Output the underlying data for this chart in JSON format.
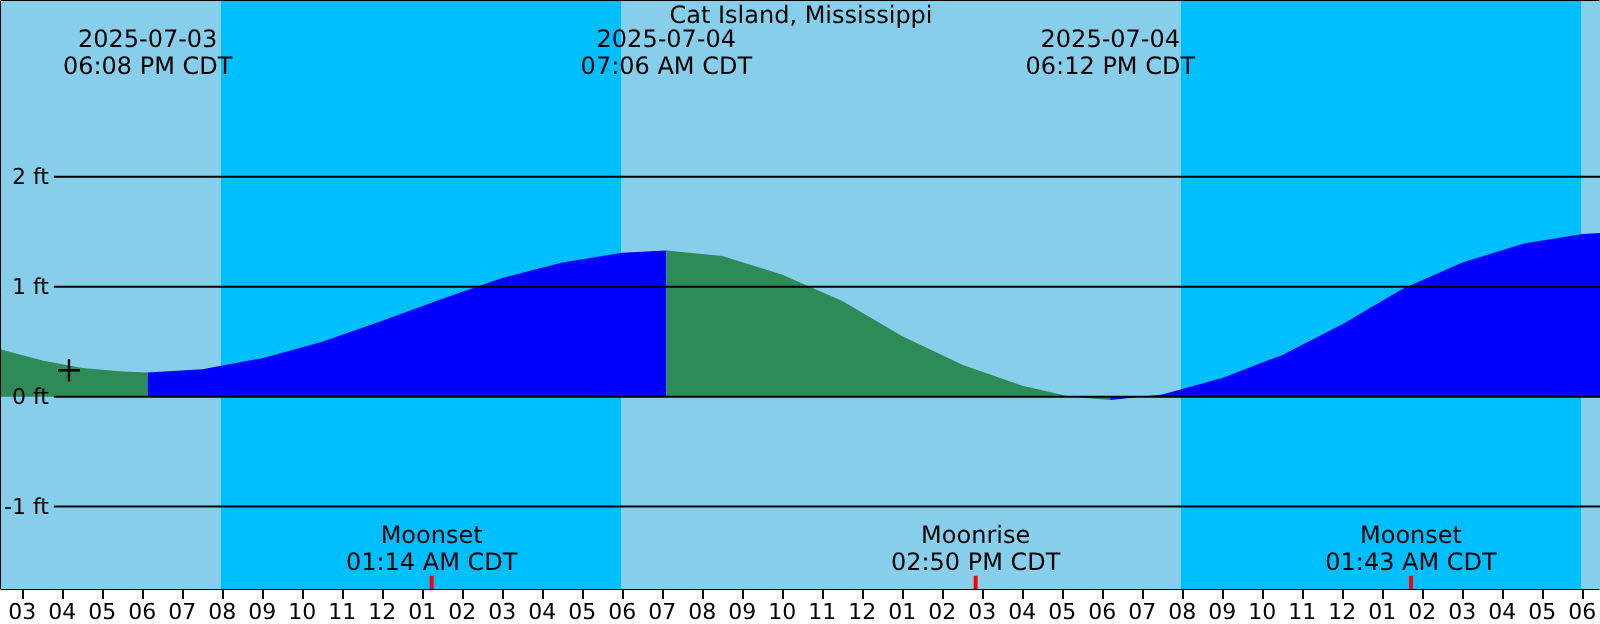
{
  "chart_data": {
    "type": "area",
    "title": "Cat Island, Mississippi",
    "xlim": [
      "2025-07-03T14:28",
      "2025-07-05T06:28"
    ],
    "ylim": [
      -1.75,
      3.6
    ],
    "yticks": [
      {
        "value": -1,
        "label": "-1 ft"
      },
      {
        "value": 0,
        "label": "0 ft"
      },
      {
        "value": 1,
        "label": "1 ft"
      },
      {
        "value": 2,
        "label": "2 ft"
      }
    ],
    "xticks": [
      {
        "value": "2025-07-03T15:00",
        "label": "03"
      },
      {
        "value": "2025-07-03T16:00",
        "label": "04"
      },
      {
        "value": "2025-07-03T17:00",
        "label": "05"
      },
      {
        "value": "2025-07-03T18:00",
        "label": "06"
      },
      {
        "value": "2025-07-03T19:00",
        "label": "07"
      },
      {
        "value": "2025-07-03T20:00",
        "label": "08"
      },
      {
        "value": "2025-07-03T21:00",
        "label": "09"
      },
      {
        "value": "2025-07-03T22:00",
        "label": "10"
      },
      {
        "value": "2025-07-03T23:00",
        "label": "11"
      },
      {
        "value": "2025-07-04T00:00",
        "label": "12"
      },
      {
        "value": "2025-07-04T01:00",
        "label": "01"
      },
      {
        "value": "2025-07-04T02:00",
        "label": "02"
      },
      {
        "value": "2025-07-04T03:00",
        "label": "03"
      },
      {
        "value": "2025-07-04T04:00",
        "label": "04"
      },
      {
        "value": "2025-07-04T05:00",
        "label": "05"
      },
      {
        "value": "2025-07-04T06:00",
        "label": "06"
      },
      {
        "value": "2025-07-04T07:00",
        "label": "07"
      },
      {
        "value": "2025-07-04T08:00",
        "label": "08"
      },
      {
        "value": "2025-07-04T09:00",
        "label": "09"
      },
      {
        "value": "2025-07-04T10:00",
        "label": "10"
      },
      {
        "value": "2025-07-04T11:00",
        "label": "11"
      },
      {
        "value": "2025-07-04T12:00",
        "label": "12"
      },
      {
        "value": "2025-07-04T13:00",
        "label": "01"
      },
      {
        "value": "2025-07-04T14:00",
        "label": "02"
      },
      {
        "value": "2025-07-04T15:00",
        "label": "03"
      },
      {
        "value": "2025-07-04T16:00",
        "label": "04"
      },
      {
        "value": "2025-07-04T17:00",
        "label": "05"
      },
      {
        "value": "2025-07-04T18:00",
        "label": "06"
      },
      {
        "value": "2025-07-04T19:00",
        "label": "07"
      },
      {
        "value": "2025-07-04T20:00",
        "label": "08"
      },
      {
        "value": "2025-07-04T21:00",
        "label": "09"
      },
      {
        "value": "2025-07-04T22:00",
        "label": "10"
      },
      {
        "value": "2025-07-04T23:00",
        "label": "11"
      },
      {
        "value": "2025-07-05T00:00",
        "label": "12"
      },
      {
        "value": "2025-07-05T01:00",
        "label": "01"
      },
      {
        "value": "2025-07-05T02:00",
        "label": "02"
      },
      {
        "value": "2025-07-05T03:00",
        "label": "03"
      },
      {
        "value": "2025-07-05T04:00",
        "label": "04"
      },
      {
        "value": "2025-07-05T05:00",
        "label": "05"
      },
      {
        "value": "2025-07-05T06:00",
        "label": "06"
      }
    ],
    "grid": "y",
    "series": [
      {
        "color": "#2e8b57",
        "x": [
          "2025-07-03T14:28",
          "2025-07-03T15:30",
          "2025-07-03T16:30",
          "2025-07-03T17:30",
          "2025-07-03T18:08"
        ],
        "values": [
          0.43,
          0.33,
          0.26,
          0.23,
          0.22
        ]
      },
      {
        "color": "#0000ff",
        "x": [
          "2025-07-03T18:08",
          "2025-07-03T19:30",
          "2025-07-03T21:00",
          "2025-07-03T22:30",
          "2025-07-04T00:00",
          "2025-07-04T01:30",
          "2025-07-04T03:00",
          "2025-07-04T04:30",
          "2025-07-04T06:00",
          "2025-07-04T07:06"
        ],
        "values": [
          0.22,
          0.25,
          0.35,
          0.5,
          0.69,
          0.89,
          1.08,
          1.22,
          1.31,
          1.33
        ]
      },
      {
        "color": "#2e8b57",
        "x": [
          "2025-07-04T07:06",
          "2025-07-04T08:30",
          "2025-07-04T10:00",
          "2025-07-04T11:30",
          "2025-07-04T13:00",
          "2025-07-04T14:30",
          "2025-07-04T16:00",
          "2025-07-04T17:12",
          "2025-07-04T18:12"
        ],
        "values": [
          1.33,
          1.28,
          1.11,
          0.87,
          0.55,
          0.29,
          0.1,
          0.0,
          -0.03
        ]
      },
      {
        "color": "#0000ff",
        "x": [
          "2025-07-04T18:12",
          "2025-07-04T19:30",
          "2025-07-04T21:00",
          "2025-07-04T22:30",
          "2025-07-05T00:00",
          "2025-07-05T01:30",
          "2025-07-05T03:00",
          "2025-07-05T04:30",
          "2025-07-05T06:00",
          "2025-07-05T06:28"
        ],
        "values": [
          -0.03,
          0.02,
          0.17,
          0.38,
          0.66,
          0.98,
          1.22,
          1.39,
          1.48,
          1.49
        ]
      },
      {
        "type": "scatter",
        "marker": "cross",
        "color": "#000000",
        "x": [
          "2025-07-03T16:10"
        ],
        "values": [
          0.24
        ]
      }
    ],
    "bands": [
      {
        "axis": "x",
        "from": "2025-07-03T14:28",
        "to": "2025-07-03T19:58",
        "color": "#87ceeb"
      },
      {
        "axis": "x",
        "from": "2025-07-04T05:58",
        "to": "2025-07-04T19:58",
        "color": "#87ceeb"
      },
      {
        "axis": "x",
        "from": "2025-07-05T05:58",
        "to": "2025-07-05T06:28",
        "color": "#87ceeb"
      },
      {
        "axis": "x",
        "from": "2025-07-03T19:58",
        "to": "2025-07-04T05:58",
        "color": "#00bfff"
      },
      {
        "axis": "x",
        "from": "2025-07-04T19:58",
        "to": "2025-07-05T05:58",
        "color": "#00bfff"
      }
    ],
    "ref_lines": [
      {
        "axis": "x",
        "value": "2025-07-04T01:14",
        "label": "Moonset\n01:14 AM CDT",
        "color": "#ff0000"
      },
      {
        "axis": "x",
        "value": "2025-07-04T14:50",
        "label": "Moonrise\n02:50 PM CDT",
        "color": "#ff0000"
      },
      {
        "axis": "x",
        "value": "2025-07-05T01:43",
        "label": "Moonset\n01:43 AM CDT",
        "color": "#ff0000"
      }
    ],
    "annotations": [
      "2025-07-03\n06:08 PM CDT",
      "2025-07-04\n07:06 AM CDT",
      "2025-07-04\n06:12 PM CDT"
    ]
  }
}
